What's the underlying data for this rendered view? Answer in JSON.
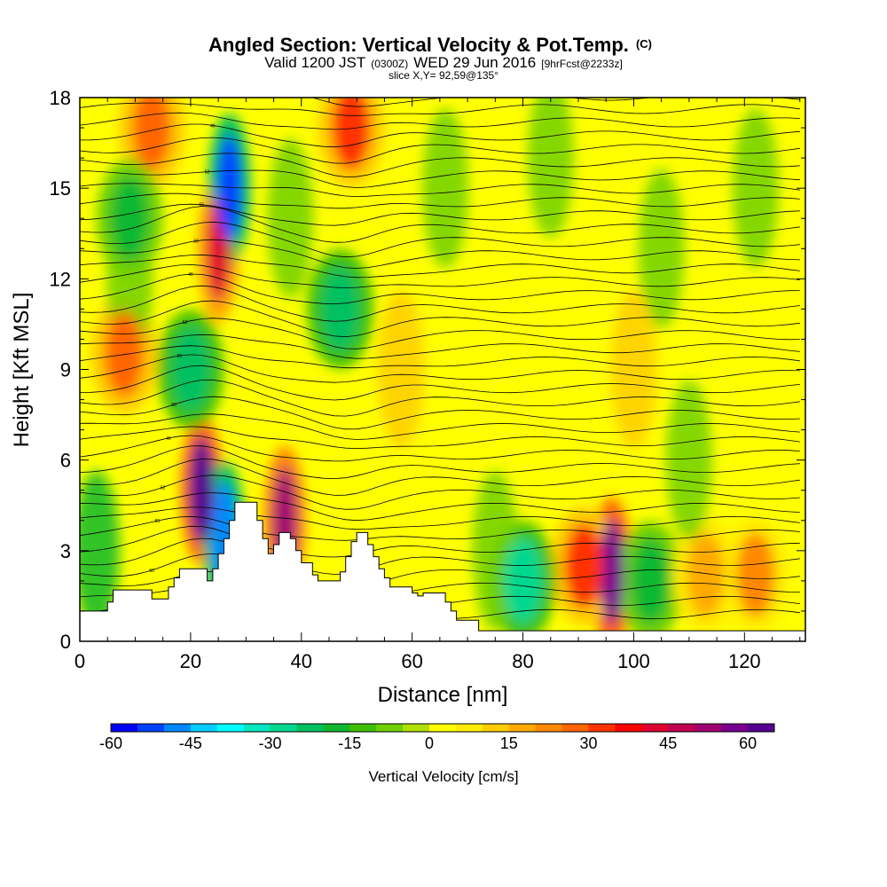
{
  "title": {
    "main": "Angled Section: Vertical Velocity & Pot.Temp.",
    "unit": "(C)",
    "valid_a": "Valid 1200 JST",
    "valid_b": "(0300Z)",
    "valid_c": "WED 29 Jun 2016",
    "valid_d": "[9hrFcst@2233z]",
    "slice": "slice X,Y= 92,59@135°"
  },
  "chart_data": {
    "type": "heatmap",
    "xlabel": "Distance [nm]",
    "ylabel": "Height [Kft MSL]",
    "xlim": [
      0,
      131
    ],
    "ylim": [
      0,
      18
    ],
    "x_ticks": [
      "0",
      "20",
      "40",
      "60",
      "80",
      "100",
      "120"
    ],
    "x_tick_values": [
      0,
      20,
      40,
      60,
      80,
      100,
      120
    ],
    "y_ticks": [
      "0",
      "3",
      "6",
      "9",
      "12",
      "15",
      "18"
    ],
    "y_tick_values": [
      0,
      3,
      6,
      9,
      12,
      15,
      18
    ],
    "colorbar": {
      "label": "Vertical Velocity [cm/s]",
      "range": [
        -60,
        65
      ],
      "tick_labels": [
        "-60",
        "-45",
        "-30",
        "-15",
        "0",
        "15",
        "30",
        "45",
        "60"
      ],
      "tick_values": [
        -60,
        -45,
        -30,
        -15,
        0,
        15,
        30,
        45,
        60
      ],
      "colors": [
        "#0000ff",
        "#0040ff",
        "#0088ff",
        "#00ccff",
        "#00ffff",
        "#00e8c0",
        "#00d890",
        "#00c060",
        "#10b830",
        "#40c000",
        "#70d000",
        "#b0e000",
        "#ffff00",
        "#ffee00",
        "#ffcc00",
        "#ffaa00",
        "#ff8800",
        "#ff6600",
        "#ff3300",
        "#ff0000",
        "#e00030",
        "#c00050",
        "#a00070",
        "#7a0090",
        "#55008f"
      ]
    },
    "terrain_top_kft": [
      [
        0,
        1.0
      ],
      [
        1,
        1.0
      ],
      [
        5,
        1.3
      ],
      [
        6,
        1.7
      ],
      [
        11,
        1.7
      ],
      [
        13,
        1.4
      ],
      [
        15,
        1.4
      ],
      [
        16,
        1.8
      ],
      [
        17,
        2.1
      ],
      [
        18,
        2.4
      ],
      [
        22,
        2.4
      ],
      [
        23,
        2.0
      ],
      [
        24,
        2.4
      ],
      [
        25,
        2.9
      ],
      [
        26,
        3.4
      ],
      [
        27,
        4.0
      ],
      [
        28,
        4.6
      ],
      [
        31,
        4.6
      ],
      [
        32,
        4.0
      ],
      [
        33,
        3.4
      ],
      [
        34,
        2.9
      ],
      [
        35,
        3.2
      ],
      [
        36,
        3.6
      ],
      [
        38,
        3.4
      ],
      [
        39,
        3.0
      ],
      [
        40,
        2.6
      ],
      [
        42,
        2.2
      ],
      [
        43,
        2.0
      ],
      [
        46,
        2.0
      ],
      [
        47,
        2.3
      ],
      [
        48,
        2.8
      ],
      [
        49,
        3.3
      ],
      [
        50,
        3.6
      ],
      [
        51,
        3.6
      ],
      [
        52,
        3.2
      ],
      [
        53,
        2.8
      ],
      [
        54,
        2.4
      ],
      [
        55,
        2.1
      ],
      [
        56,
        1.8
      ],
      [
        58,
        1.8
      ],
      [
        60,
        1.6
      ],
      [
        61,
        1.5
      ],
      [
        62,
        1.6
      ],
      [
        64,
        1.6
      ],
      [
        66,
        1.3
      ],
      [
        67,
        1.0
      ],
      [
        68,
        0.7
      ],
      [
        71,
        0.7
      ],
      [
        72,
        0.35
      ],
      [
        131,
        0.35
      ]
    ],
    "w_features_cm_s": [
      {
        "x": 22,
        "z": 5.0,
        "w": 60
      },
      {
        "x": 25,
        "z": 13,
        "w": 42
      },
      {
        "x": 49,
        "z": 17,
        "w": 32
      },
      {
        "x": 13,
        "z": 17,
        "w": 28
      },
      {
        "x": 27,
        "z": 15,
        "w": -55
      },
      {
        "x": 26,
        "z": 3.5,
        "w": -50
      },
      {
        "x": 37,
        "z": 4.0,
        "w": 50
      },
      {
        "x": 96,
        "z": 2.3,
        "w": 58
      },
      {
        "x": 91,
        "z": 2.5,
        "w": 30
      },
      {
        "x": 8,
        "z": 9.5,
        "w": 25
      },
      {
        "x": 47,
        "z": 11,
        "w": -25
      },
      {
        "x": 20,
        "z": 9,
        "w": -25
      },
      {
        "x": 9,
        "z": 14,
        "w": -18
      },
      {
        "x": 80,
        "z": 2.0,
        "w": -28
      },
      {
        "x": 103,
        "z": 2.0,
        "w": -20
      },
      {
        "x": 113,
        "z": 2.2,
        "w": 18
      },
      {
        "x": 122,
        "z": 2.2,
        "w": 20
      }
    ],
    "theta_contour_labels": [
      "46",
      "40",
      "44",
      "50",
      "42",
      "48",
      "55",
      "56",
      "58",
      "52",
      "38",
      "30"
    ]
  }
}
